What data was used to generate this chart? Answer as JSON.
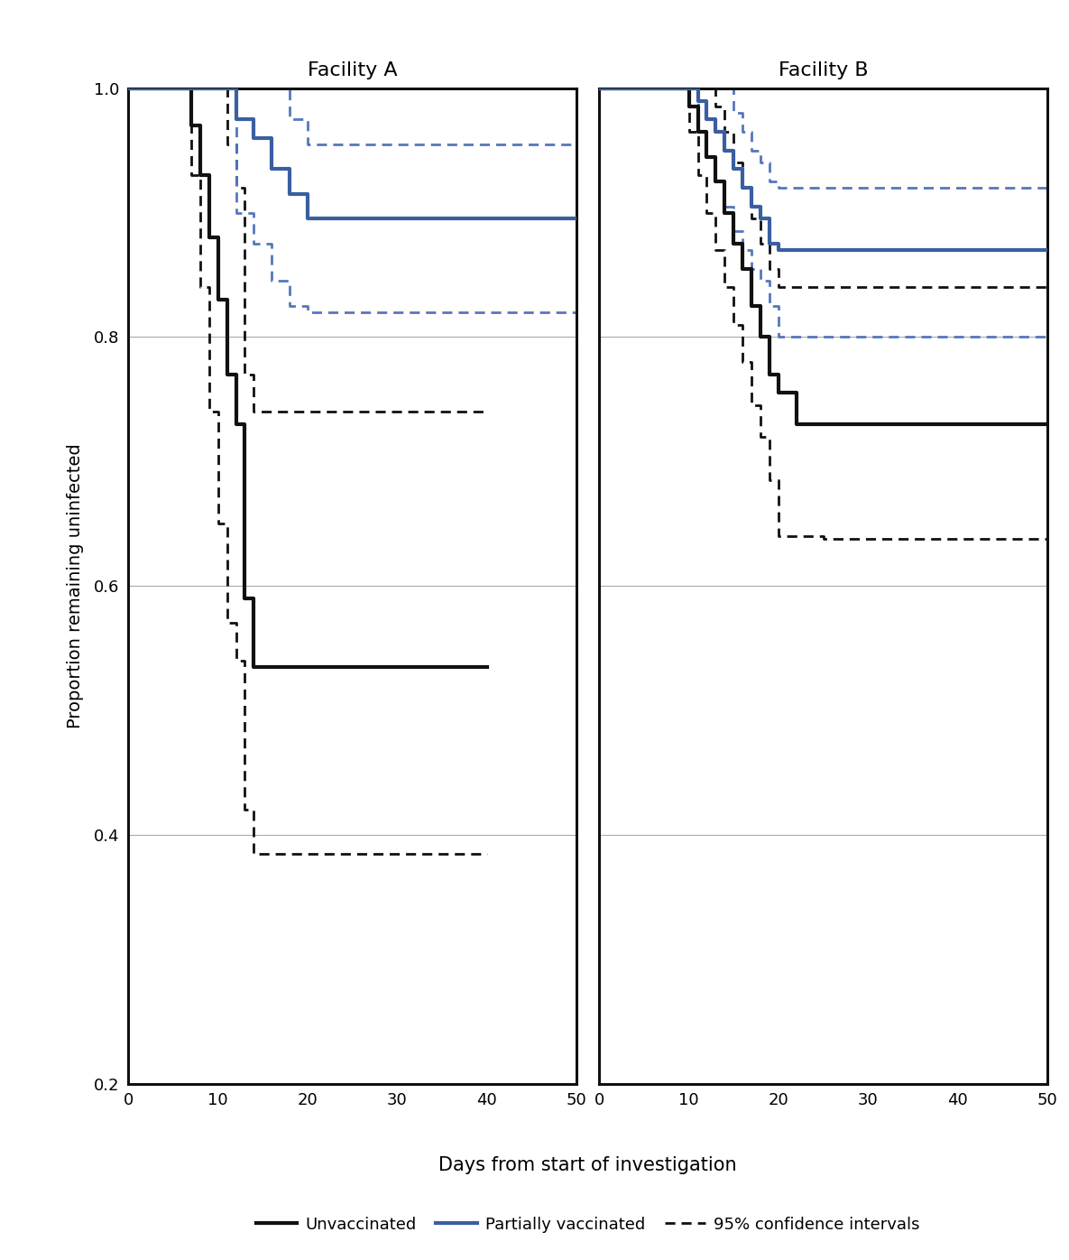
{
  "facility_A": {
    "title": "Facility A",
    "unvacc": [
      [
        0,
        1.0
      ],
      [
        7,
        1.0
      ],
      [
        7,
        0.97
      ],
      [
        8,
        0.97
      ],
      [
        8,
        0.93
      ],
      [
        9,
        0.93
      ],
      [
        9,
        0.88
      ],
      [
        10,
        0.88
      ],
      [
        10,
        0.83
      ],
      [
        11,
        0.83
      ],
      [
        11,
        0.77
      ],
      [
        12,
        0.77
      ],
      [
        12,
        0.73
      ],
      [
        13,
        0.73
      ],
      [
        13,
        0.59
      ],
      [
        14,
        0.59
      ],
      [
        14,
        0.535
      ],
      [
        15,
        0.535
      ],
      [
        15,
        0.535
      ],
      [
        40,
        0.535
      ]
    ],
    "unvacc_ci_upper": [
      [
        0,
        1.0
      ],
      [
        7,
        1.0
      ],
      [
        7,
        1.0
      ],
      [
        8,
        1.0
      ],
      [
        8,
        1.0
      ],
      [
        9,
        1.0
      ],
      [
        9,
        1.0
      ],
      [
        10,
        1.0
      ],
      [
        10,
        1.0
      ],
      [
        11,
        1.0
      ],
      [
        11,
        0.955
      ],
      [
        12,
        0.955
      ],
      [
        12,
        0.92
      ],
      [
        13,
        0.92
      ],
      [
        13,
        0.77
      ],
      [
        14,
        0.77
      ],
      [
        14,
        0.74
      ],
      [
        15,
        0.74
      ],
      [
        40,
        0.74
      ]
    ],
    "unvacc_ci_lower": [
      [
        0,
        1.0
      ],
      [
        7,
        1.0
      ],
      [
        7,
        0.93
      ],
      [
        8,
        0.93
      ],
      [
        8,
        0.84
      ],
      [
        9,
        0.84
      ],
      [
        9,
        0.74
      ],
      [
        10,
        0.74
      ],
      [
        10,
        0.65
      ],
      [
        11,
        0.65
      ],
      [
        11,
        0.57
      ],
      [
        12,
        0.57
      ],
      [
        12,
        0.54
      ],
      [
        13,
        0.54
      ],
      [
        13,
        0.42
      ],
      [
        14,
        0.42
      ],
      [
        14,
        0.385
      ],
      [
        15,
        0.385
      ],
      [
        40,
        0.385
      ]
    ],
    "vacc": [
      [
        0,
        1.0
      ],
      [
        12,
        1.0
      ],
      [
        12,
        0.975
      ],
      [
        14,
        0.975
      ],
      [
        14,
        0.96
      ],
      [
        16,
        0.96
      ],
      [
        16,
        0.935
      ],
      [
        18,
        0.935
      ],
      [
        18,
        0.915
      ],
      [
        20,
        0.915
      ],
      [
        20,
        0.895
      ],
      [
        50,
        0.895
      ]
    ],
    "vacc_ci_upper": [
      [
        0,
        1.0
      ],
      [
        12,
        1.0
      ],
      [
        12,
        1.0
      ],
      [
        14,
        1.0
      ],
      [
        14,
        1.0
      ],
      [
        16,
        1.0
      ],
      [
        16,
        1.0
      ],
      [
        18,
        1.0
      ],
      [
        18,
        0.975
      ],
      [
        20,
        0.975
      ],
      [
        20,
        0.955
      ],
      [
        50,
        0.955
      ]
    ],
    "vacc_ci_lower": [
      [
        0,
        1.0
      ],
      [
        12,
        1.0
      ],
      [
        12,
        0.9
      ],
      [
        14,
        0.9
      ],
      [
        14,
        0.875
      ],
      [
        16,
        0.875
      ],
      [
        16,
        0.845
      ],
      [
        18,
        0.845
      ],
      [
        18,
        0.825
      ],
      [
        20,
        0.825
      ],
      [
        20,
        0.82
      ],
      [
        50,
        0.82
      ]
    ]
  },
  "facility_B": {
    "title": "Facility B",
    "unvacc": [
      [
        0,
        1.0
      ],
      [
        10,
        1.0
      ],
      [
        10,
        0.985
      ],
      [
        11,
        0.985
      ],
      [
        11,
        0.965
      ],
      [
        12,
        0.965
      ],
      [
        12,
        0.945
      ],
      [
        13,
        0.945
      ],
      [
        13,
        0.925
      ],
      [
        14,
        0.925
      ],
      [
        14,
        0.9
      ],
      [
        15,
        0.9
      ],
      [
        15,
        0.875
      ],
      [
        16,
        0.875
      ],
      [
        16,
        0.855
      ],
      [
        17,
        0.855
      ],
      [
        17,
        0.825
      ],
      [
        18,
        0.825
      ],
      [
        18,
        0.8
      ],
      [
        19,
        0.8
      ],
      [
        19,
        0.77
      ],
      [
        20,
        0.77
      ],
      [
        20,
        0.755
      ],
      [
        22,
        0.755
      ],
      [
        22,
        0.73
      ],
      [
        25,
        0.73
      ],
      [
        25,
        0.73
      ],
      [
        50,
        0.73
      ]
    ],
    "unvacc_ci_upper": [
      [
        0,
        1.0
      ],
      [
        10,
        1.0
      ],
      [
        10,
        1.0
      ],
      [
        11,
        1.0
      ],
      [
        11,
        1.0
      ],
      [
        12,
        1.0
      ],
      [
        12,
        1.0
      ],
      [
        13,
        1.0
      ],
      [
        13,
        0.985
      ],
      [
        14,
        0.985
      ],
      [
        14,
        0.965
      ],
      [
        15,
        0.965
      ],
      [
        15,
        0.94
      ],
      [
        16,
        0.94
      ],
      [
        16,
        0.92
      ],
      [
        17,
        0.92
      ],
      [
        17,
        0.895
      ],
      [
        18,
        0.895
      ],
      [
        18,
        0.875
      ],
      [
        19,
        0.875
      ],
      [
        19,
        0.855
      ],
      [
        20,
        0.855
      ],
      [
        20,
        0.84
      ],
      [
        22,
        0.84
      ],
      [
        50,
        0.84
      ]
    ],
    "unvacc_ci_lower": [
      [
        0,
        1.0
      ],
      [
        10,
        1.0
      ],
      [
        10,
        0.965
      ],
      [
        11,
        0.965
      ],
      [
        11,
        0.93
      ],
      [
        12,
        0.93
      ],
      [
        12,
        0.9
      ],
      [
        13,
        0.9
      ],
      [
        13,
        0.87
      ],
      [
        14,
        0.87
      ],
      [
        14,
        0.84
      ],
      [
        15,
        0.84
      ],
      [
        15,
        0.81
      ],
      [
        16,
        0.81
      ],
      [
        16,
        0.78
      ],
      [
        17,
        0.78
      ],
      [
        17,
        0.745
      ],
      [
        18,
        0.745
      ],
      [
        18,
        0.72
      ],
      [
        19,
        0.72
      ],
      [
        19,
        0.685
      ],
      [
        20,
        0.685
      ],
      [
        20,
        0.64
      ],
      [
        25,
        0.64
      ],
      [
        25,
        0.638
      ],
      [
        50,
        0.638
      ]
    ],
    "vacc": [
      [
        0,
        1.0
      ],
      [
        11,
        1.0
      ],
      [
        11,
        0.99
      ],
      [
        12,
        0.99
      ],
      [
        12,
        0.975
      ],
      [
        13,
        0.975
      ],
      [
        13,
        0.965
      ],
      [
        14,
        0.965
      ],
      [
        14,
        0.95
      ],
      [
        15,
        0.95
      ],
      [
        15,
        0.935
      ],
      [
        16,
        0.935
      ],
      [
        16,
        0.92
      ],
      [
        17,
        0.92
      ],
      [
        17,
        0.905
      ],
      [
        18,
        0.905
      ],
      [
        18,
        0.895
      ],
      [
        19,
        0.895
      ],
      [
        19,
        0.875
      ],
      [
        20,
        0.875
      ],
      [
        20,
        0.87
      ],
      [
        25,
        0.87
      ],
      [
        50,
        0.87
      ]
    ],
    "vacc_ci_upper": [
      [
        0,
        1.0
      ],
      [
        11,
        1.0
      ],
      [
        11,
        1.0
      ],
      [
        12,
        1.0
      ],
      [
        12,
        1.0
      ],
      [
        13,
        1.0
      ],
      [
        13,
        1.0
      ],
      [
        14,
        1.0
      ],
      [
        14,
        1.0
      ],
      [
        15,
        1.0
      ],
      [
        15,
        0.98
      ],
      [
        16,
        0.98
      ],
      [
        16,
        0.965
      ],
      [
        17,
        0.965
      ],
      [
        17,
        0.95
      ],
      [
        18,
        0.95
      ],
      [
        18,
        0.94
      ],
      [
        19,
        0.94
      ],
      [
        19,
        0.925
      ],
      [
        20,
        0.925
      ],
      [
        20,
        0.92
      ],
      [
        50,
        0.92
      ]
    ],
    "vacc_ci_lower": [
      [
        0,
        1.0
      ],
      [
        11,
        1.0
      ],
      [
        11,
        0.965
      ],
      [
        12,
        0.965
      ],
      [
        12,
        0.945
      ],
      [
        13,
        0.945
      ],
      [
        13,
        0.925
      ],
      [
        14,
        0.925
      ],
      [
        14,
        0.905
      ],
      [
        15,
        0.905
      ],
      [
        15,
        0.885
      ],
      [
        16,
        0.885
      ],
      [
        16,
        0.87
      ],
      [
        17,
        0.87
      ],
      [
        17,
        0.855
      ],
      [
        18,
        0.855
      ],
      [
        18,
        0.845
      ],
      [
        19,
        0.845
      ],
      [
        19,
        0.825
      ],
      [
        20,
        0.825
      ],
      [
        20,
        0.8
      ],
      [
        28,
        0.8
      ],
      [
        50,
        0.8
      ]
    ]
  },
  "colors": {
    "black": "#111111",
    "blue": "#3a5fa0",
    "blue_ci": "#5577bb"
  },
  "ylim": [
    0.2,
    1.0
  ],
  "xlim": [
    0,
    50
  ],
  "yticks": [
    0.2,
    0.4,
    0.6,
    0.8,
    1.0
  ],
  "xticks": [
    0,
    10,
    20,
    30,
    40,
    50
  ],
  "ylabel": "Proportion remaining uninfected",
  "xlabel": "Days from start of investigation"
}
